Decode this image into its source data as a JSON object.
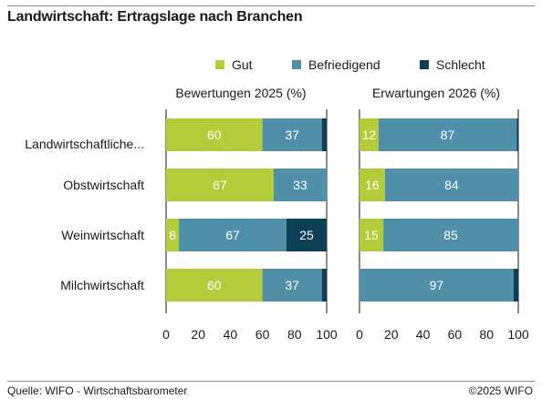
{
  "title": "Landwirtschaft: Ertragslage nach Branchen",
  "legend": [
    {
      "label": "Gut",
      "color": "#b5cc3a"
    },
    {
      "label": "Befriedigend",
      "color": "#4f90a8"
    },
    {
      "label": "Schlecht",
      "color": "#0d3f55"
    }
  ],
  "footer": {
    "source": "Quelle: WIFO - Wirtschaftsbarometer",
    "copyright": "©2025 WIFO"
  },
  "chart_data": [
    {
      "type": "bar",
      "orientation": "horizontal",
      "stacked": true,
      "title": "Bewertungen 2025 (%)",
      "categories": [
        "Landwirtschaftliche...",
        "Obstwirtschaft",
        "Weinwirtschaft",
        "Milchwirtschaft"
      ],
      "series": [
        {
          "name": "Gut",
          "values": [
            60,
            67,
            8,
            60
          ],
          "labels": [
            "60",
            "67",
            "8",
            "60"
          ]
        },
        {
          "name": "Befriedigend",
          "values": [
            37,
            33,
            67,
            37
          ],
          "labels": [
            "37",
            "33",
            "67",
            "37"
          ]
        },
        {
          "name": "Schlecht",
          "values": [
            3,
            0,
            25,
            3
          ],
          "labels": [
            "",
            "",
            "25",
            ""
          ]
        }
      ],
      "xlim": [
        0,
        100
      ],
      "xticks": [
        "0",
        "20",
        "40",
        "60",
        "80",
        "100"
      ]
    },
    {
      "type": "bar",
      "orientation": "horizontal",
      "stacked": true,
      "title": "Erwartungen 2026 (%)",
      "categories": [
        "Landwirtschaftliche...",
        "Obstwirtschaft",
        "Weinwirtschaft",
        "Milchwirtschaft"
      ],
      "series": [
        {
          "name": "Gut",
          "values": [
            12,
            16,
            15,
            0
          ],
          "labels": [
            "12",
            "16",
            "15",
            ""
          ]
        },
        {
          "name": "Befriedigend",
          "values": [
            87,
            84,
            85,
            97
          ],
          "labels": [
            "87",
            "84",
            "85",
            "97"
          ]
        },
        {
          "name": "Schlecht",
          "values": [
            1,
            0,
            0,
            3
          ],
          "labels": [
            "",
            "",
            "",
            ""
          ]
        }
      ],
      "xlim": [
        0,
        100
      ],
      "xticks": [
        "0",
        "20",
        "40",
        "60",
        "80",
        "100"
      ]
    }
  ]
}
